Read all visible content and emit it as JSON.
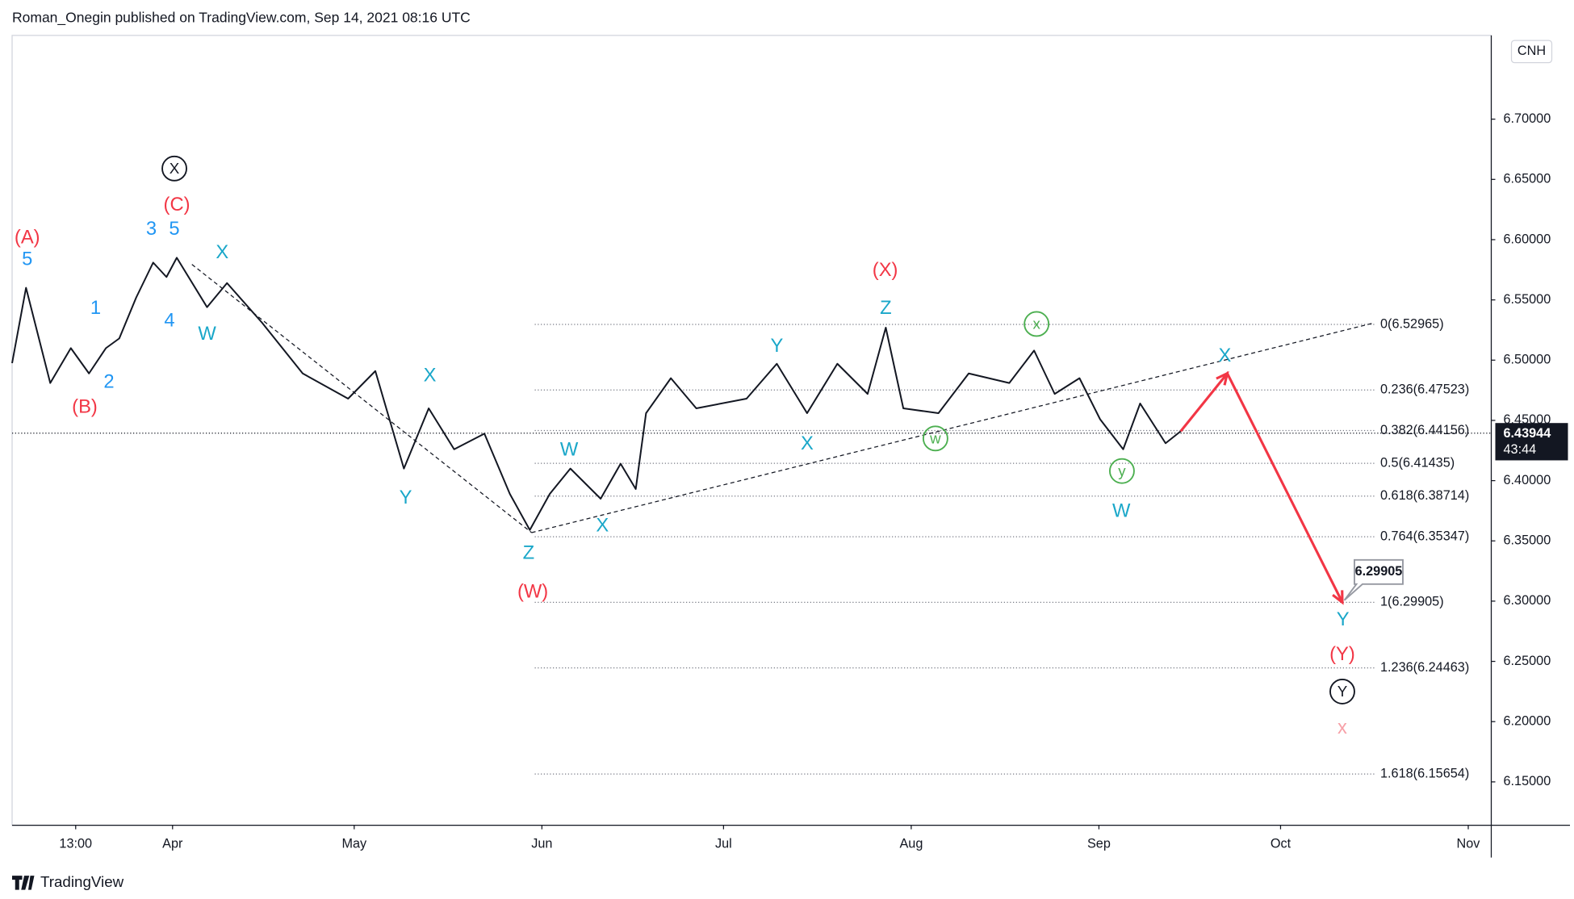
{
  "header": {
    "byline": "Roman_Onegin published on TradingView.com, Sep 14, 2021 08:16 UTC",
    "symbol": "CNH"
  },
  "footer": {
    "brand": "TradingView"
  },
  "chart_data": {
    "type": "line",
    "xlim": [
      64.5,
      308.8
    ],
    "ylim": [
      6.114,
      6.7695
    ],
    "xticks": [
      {
        "value": 75,
        "label": "13:00"
      },
      {
        "value": 91,
        "label": "Apr"
      },
      {
        "value": 121,
        "label": "May"
      },
      {
        "value": 152,
        "label": "Jun"
      },
      {
        "value": 182,
        "label": "Jul"
      },
      {
        "value": 213,
        "label": "Aug"
      },
      {
        "value": 244,
        "label": "Sep"
      },
      {
        "value": 274,
        "label": "Oct"
      },
      {
        "value": 305,
        "label": "Nov"
      }
    ],
    "yticks": [
      {
        "value": 6.15,
        "label": "6.15000"
      },
      {
        "value": 6.2,
        "label": "6.20000"
      },
      {
        "value": 6.25,
        "label": "6.25000"
      },
      {
        "value": 6.3,
        "label": "6.30000"
      },
      {
        "value": 6.35,
        "label": "6.35000"
      },
      {
        "value": 6.4,
        "label": "6.40000"
      },
      {
        "value": 6.45,
        "label": "6.45000"
      },
      {
        "value": 6.5,
        "label": "6.50000"
      },
      {
        "value": 6.55,
        "label": "6.55000"
      },
      {
        "value": 6.6,
        "label": "6.60000"
      },
      {
        "value": 6.65,
        "label": "6.65000"
      },
      {
        "value": 6.7,
        "label": "6.70000"
      }
    ],
    "price": {
      "color": "#131722",
      "x": [
        64.5,
        66.8,
        70.8,
        74.2,
        77.2,
        80,
        82.2,
        85,
        87.8,
        90,
        91.7,
        96.7,
        100,
        105.8,
        112.5,
        120,
        124.5,
        129.2,
        133.3,
        137.5,
        142.5,
        146.7,
        150,
        153.3,
        156.7,
        161.7,
        165,
        167.5,
        169.2,
        173.3,
        177.5,
        185.8,
        190.8,
        195.8,
        200.8,
        205.8,
        208.8,
        211.7,
        217.5,
        222.5,
        229.2,
        233.3,
        236.7,
        240.8,
        244.2,
        248,
        250.8,
        255,
        257.5
      ],
      "values": [
        6.4975,
        6.56,
        6.481,
        6.51,
        6.489,
        6.51,
        6.518,
        6.552,
        6.581,
        6.569,
        6.585,
        6.544,
        6.564,
        6.531,
        6.489,
        6.468,
        6.491,
        6.41,
        6.46,
        6.426,
        6.439,
        6.389,
        6.359,
        6.389,
        6.41,
        6.385,
        6.414,
        6.393,
        6.456,
        6.485,
        6.46,
        6.468,
        6.497,
        6.456,
        6.497,
        6.472,
        6.527,
        6.46,
        6.456,
        6.489,
        6.481,
        6.508,
        6.472,
        6.485,
        6.451,
        6.426,
        6.464,
        6.431,
        6.441
      ]
    },
    "projection": {
      "color": "#f23645",
      "x": [
        257.5,
        265.2,
        284.2
      ],
      "values": [
        6.441,
        6.489,
        6.299
      ]
    },
    "trendlines": [
      {
        "x": [
          94.2,
          150.3
        ],
        "values": [
          6.5795,
          6.3569
        ]
      },
      {
        "x": [
          150.3,
          289.5
        ],
        "values": [
          6.3569,
          6.531
        ]
      }
    ],
    "fib_levels": [
      {
        "value": 6.52965,
        "label": "0(6.52965)"
      },
      {
        "value": 6.47523,
        "label": "0.236(6.47523)"
      },
      {
        "value": 6.44156,
        "label": "0.382(6.44156)"
      },
      {
        "value": 6.41435,
        "label": "0.5(6.41435)"
      },
      {
        "value": 6.38714,
        "label": "0.618(6.38714)"
      },
      {
        "value": 6.35347,
        "label": "0.764(6.35347)"
      },
      {
        "value": 6.29905,
        "label": "1(6.29905)"
      },
      {
        "value": 6.24463,
        "label": "1.236(6.24463)"
      },
      {
        "value": 6.15654,
        "label": "1.618(6.15654)"
      }
    ],
    "last_price": {
      "value": 6.43944,
      "label": "6.43944",
      "countdown": "43:44"
    },
    "target": {
      "value": 6.29905,
      "label": "6.29905"
    },
    "wave_labels": [
      {
        "text": "(A)",
        "x": 67.0,
        "y": 6.602,
        "color": "#f23645"
      },
      {
        "text": "(B)",
        "x": 76.5,
        "y": 6.4615,
        "color": "#f23645"
      },
      {
        "text": "(C)",
        "x": 91.7,
        "y": 6.629,
        "color": "#f23645"
      },
      {
        "text": "(X)",
        "x": 208.7,
        "y": 6.575,
        "color": "#f23645"
      },
      {
        "text": "(W)",
        "x": 150.5,
        "y": 6.308,
        "color": "#f23645"
      },
      {
        "text": "(Y)",
        "x": 284.2,
        "y": 6.256,
        "color": "#f23645"
      },
      {
        "text": "x",
        "x": 284.2,
        "y": 6.195,
        "color": "#f7a1a8"
      },
      {
        "text": "5",
        "x": 67.0,
        "y": 6.584,
        "color": "#2196f3"
      },
      {
        "text": "1",
        "x": 78.3,
        "y": 6.5435,
        "color": "#2196f3"
      },
      {
        "text": "2",
        "x": 80.5,
        "y": 6.482,
        "color": "#2196f3"
      },
      {
        "text": "3",
        "x": 87.5,
        "y": 6.609,
        "color": "#2196f3"
      },
      {
        "text": "5",
        "x": 91.3,
        "y": 6.609,
        "color": "#2196f3"
      },
      {
        "text": "4",
        "x": 90.5,
        "y": 6.533,
        "color": "#2196f3"
      },
      {
        "text": "X",
        "x": 99.2,
        "y": 6.5895,
        "color": "#1aa7c9"
      },
      {
        "text": "W",
        "x": 96.7,
        "y": 6.522,
        "color": "#1aa7c9"
      },
      {
        "text": "X",
        "x": 133.5,
        "y": 6.4875,
        "color": "#1aa7c9"
      },
      {
        "text": "Y",
        "x": 129.5,
        "y": 6.386,
        "color": "#1aa7c9"
      },
      {
        "text": "Z",
        "x": 149.8,
        "y": 6.34,
        "color": "#1aa7c9"
      },
      {
        "text": "W",
        "x": 156.5,
        "y": 6.426,
        "color": "#1aa7c9"
      },
      {
        "text": "X",
        "x": 162.0,
        "y": 6.363,
        "color": "#1aa7c9"
      },
      {
        "text": "Y",
        "x": 190.8,
        "y": 6.512,
        "color": "#1aa7c9"
      },
      {
        "text": "X",
        "x": 195.8,
        "y": 6.431,
        "color": "#1aa7c9"
      },
      {
        "text": "Z",
        "x": 208.8,
        "y": 6.5435,
        "color": "#1aa7c9"
      },
      {
        "text": "W",
        "x": 247.7,
        "y": 6.375,
        "color": "#1aa7c9"
      },
      {
        "text": "X",
        "x": 264.8,
        "y": 6.504,
        "color": "#1aa7c9"
      },
      {
        "text": "Y",
        "x": 284.3,
        "y": 6.285,
        "color": "#1aa7c9"
      },
      {
        "text": "X",
        "x": 91.3,
        "y": 6.659,
        "color": "#131722",
        "circled": true
      },
      {
        "text": "Y",
        "x": 284.2,
        "y": 6.225,
        "color": "#131722",
        "circled": true
      },
      {
        "text": "x",
        "x": 233.7,
        "y": 6.53,
        "color": "#4caf50",
        "circled": true
      },
      {
        "text": "w",
        "x": 217.0,
        "y": 6.435,
        "color": "#4caf50",
        "circled": true
      },
      {
        "text": "y",
        "x": 247.8,
        "y": 6.408,
        "color": "#4caf50",
        "circled": true
      }
    ]
  }
}
